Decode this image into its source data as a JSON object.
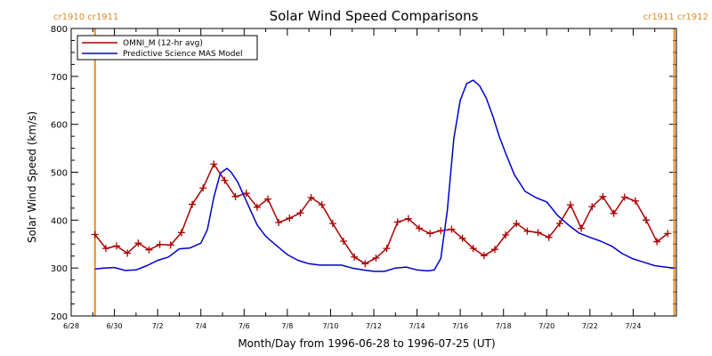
{
  "chart_data": {
    "type": "line",
    "title": "Solar Wind Speed Comparisons",
    "xlabel": "Month/Day from 1996-06-28 to 1996-07-25 (UT)",
    "ylabel": "Solar Wind Speed (km/s)",
    "x_unit": "day offset from 1996-06-28 00:00 UT",
    "xlim": [
      0,
      28
    ],
    "ylim": [
      200,
      800
    ],
    "yticks": [
      200,
      300,
      400,
      500,
      600,
      700,
      800
    ],
    "xticks": [
      {
        "x": 0,
        "label": "6/28"
      },
      {
        "x": 2,
        "label": "6/30"
      },
      {
        "x": 4,
        "label": "7/2"
      },
      {
        "x": 6,
        "label": "7/4"
      },
      {
        "x": 8,
        "label": "7/6"
      },
      {
        "x": 10,
        "label": "7/8"
      },
      {
        "x": 12,
        "label": "7/10"
      },
      {
        "x": 14,
        "label": "7/12"
      },
      {
        "x": 16,
        "label": "7/14"
      },
      {
        "x": 18,
        "label": "7/16"
      },
      {
        "x": 20,
        "label": "7/18"
      },
      {
        "x": 22,
        "label": "7/20"
      },
      {
        "x": 24,
        "label": "7/22"
      },
      {
        "x": 26,
        "label": "7/24"
      }
    ],
    "carrington_markers": [
      {
        "x": 1.1,
        "label": "cr1910 cr1911",
        "side": "left"
      },
      {
        "x": 27.9,
        "label": "cr1911 cr1912",
        "side": "right"
      }
    ],
    "legend_position": "top-left",
    "series": [
      {
        "name": "OMNI_M (12-hr avg)",
        "color": "#aa0000",
        "marker": "plus",
        "x": [
          1.1,
          1.6,
          2.1,
          2.6,
          3.1,
          3.6,
          4.1,
          4.6,
          5.1,
          5.6,
          6.1,
          6.6,
          7.1,
          7.6,
          8.1,
          8.6,
          9.1,
          9.6,
          10.1,
          10.6,
          11.1,
          11.6,
          12.1,
          12.6,
          13.1,
          13.6,
          14.1,
          14.6,
          15.1,
          15.6,
          16.1,
          16.6,
          17.1,
          17.6,
          18.1,
          18.6,
          19.1,
          19.6,
          20.1,
          20.6,
          21.1,
          21.6,
          22.1,
          22.6,
          23.1,
          23.6,
          24.1,
          24.6,
          25.1,
          25.6,
          26.1,
          26.6,
          27.1,
          27.6
        ],
        "values": [
          370,
          341,
          346,
          331,
          352,
          338,
          349,
          348,
          374,
          433,
          467,
          517,
          483,
          449,
          456,
          427,
          444,
          395,
          404,
          415,
          447,
          432,
          393,
          356,
          323,
          309,
          321,
          341,
          396,
          403,
          383,
          372,
          378,
          381,
          362,
          341,
          326,
          339,
          369,
          393,
          377,
          374,
          364,
          393,
          432,
          383,
          428,
          449,
          414,
          448,
          440,
          400,
          355,
          372
        ]
      },
      {
        "name": "Predictive Science MAS Model",
        "color": "#0000cc",
        "marker": "none",
        "x": [
          1.1,
          1.5,
          2.0,
          2.5,
          3.0,
          3.5,
          4.0,
          4.5,
          5.0,
          5.5,
          6.0,
          6.3,
          6.6,
          6.9,
          7.2,
          7.4,
          7.7,
          8.0,
          8.3,
          8.6,
          9.0,
          9.5,
          10.0,
          10.5,
          11.0,
          11.5,
          12.0,
          12.5,
          13.0,
          13.5,
          14.0,
          14.5,
          15.0,
          15.5,
          16.0,
          16.5,
          16.8,
          17.1,
          17.4,
          17.7,
          18.0,
          18.3,
          18.6,
          18.9,
          19.2,
          19.5,
          19.8,
          20.1,
          20.5,
          21.0,
          21.5,
          22.0,
          22.5,
          23.0,
          23.5,
          24.0,
          24.5,
          25.0,
          25.5,
          26.0,
          26.5,
          27.0,
          27.5,
          27.9
        ],
        "values": [
          298,
          300,
          301,
          295,
          296,
          305,
          316,
          323,
          340,
          342,
          352,
          380,
          448,
          498,
          508,
          500,
          480,
          450,
          420,
          390,
          366,
          347,
          328,
          316,
          309,
          306,
          306,
          306,
          300,
          296,
          293,
          293,
          300,
          302,
          296,
          294,
          296,
          320,
          420,
          570,
          650,
          685,
          692,
          680,
          655,
          618,
          575,
          540,
          495,
          460,
          447,
          438,
          410,
          390,
          373,
          364,
          356,
          346,
          330,
          319,
          312,
          305,
          302,
          300
        ]
      }
    ]
  }
}
